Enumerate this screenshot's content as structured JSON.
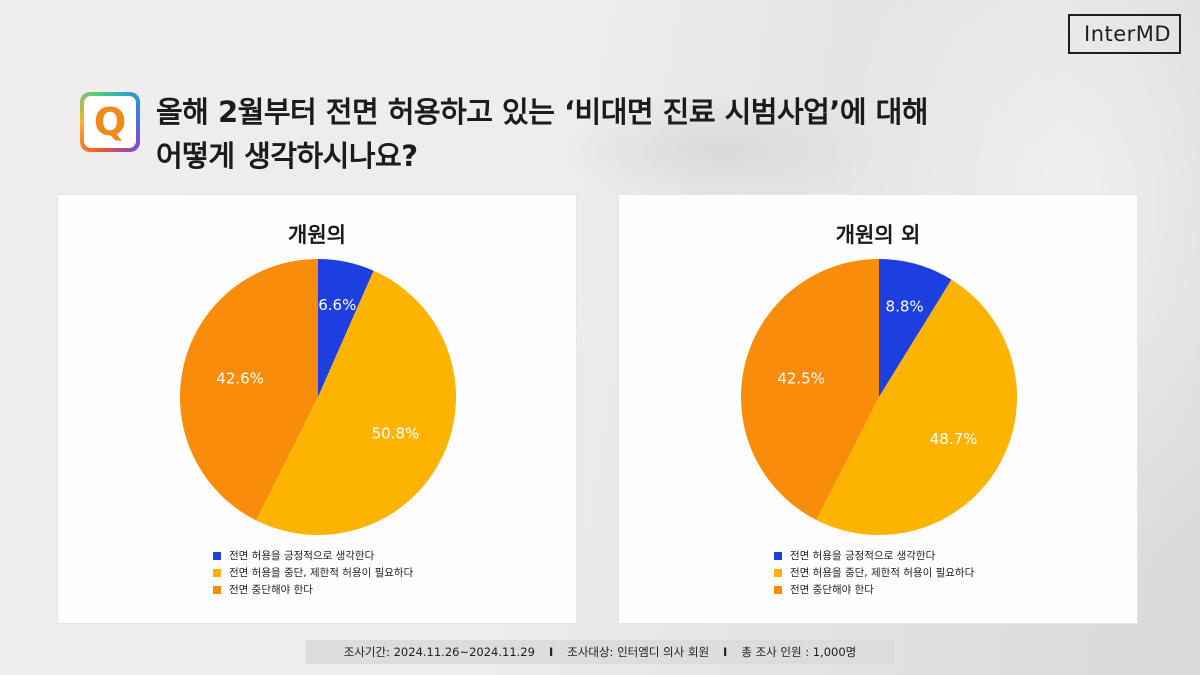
{
  "brand": {
    "logo_text": "InterMD"
  },
  "question": {
    "badge": "Q",
    "line1": "올해 2월부터 전면 허용하고 있는 ‘비대면 진료 시범사업’에 대해",
    "line2": "어떻게 생각하시나요?"
  },
  "colors": {
    "positive": "#1e3fe0",
    "restrict": "#fcb400",
    "stop": "#f98c0b"
  },
  "legend": [
    "전면 허용을 긍정적으로 생각한다",
    "전면 허용을 중단, 제한적 허용이 필요하다",
    "전면 중단해야 한다"
  ],
  "chart_data": [
    {
      "type": "pie",
      "title": "개원의",
      "categories": [
        "전면 허용을 긍정적으로 생각한다",
        "전면 허용을 중단, 제한적 허용이 필요하다",
        "전면 중단해야 한다"
      ],
      "values": [
        6.6,
        50.8,
        42.6
      ],
      "labels": [
        "6.6%",
        "50.8%",
        "42.6%"
      ],
      "legend_position": "bottom"
    },
    {
      "type": "pie",
      "title": "개원의 외",
      "categories": [
        "전면 허용을 긍정적으로 생각한다",
        "전면 허용을 중단, 제한적 허용이 필요하다",
        "전면 중단해야 한다"
      ],
      "values": [
        8.8,
        48.7,
        42.5
      ],
      "labels": [
        "8.8%",
        "48.7%",
        "42.5%"
      ],
      "legend_position": "bottom"
    }
  ],
  "footer": {
    "period": "조사기간: 2024.11.26~2024.11.29",
    "separator": "I",
    "target": "조사대상: 인터엠디 의사 회원",
    "total": "총 조사 인원 : 1,000명"
  }
}
